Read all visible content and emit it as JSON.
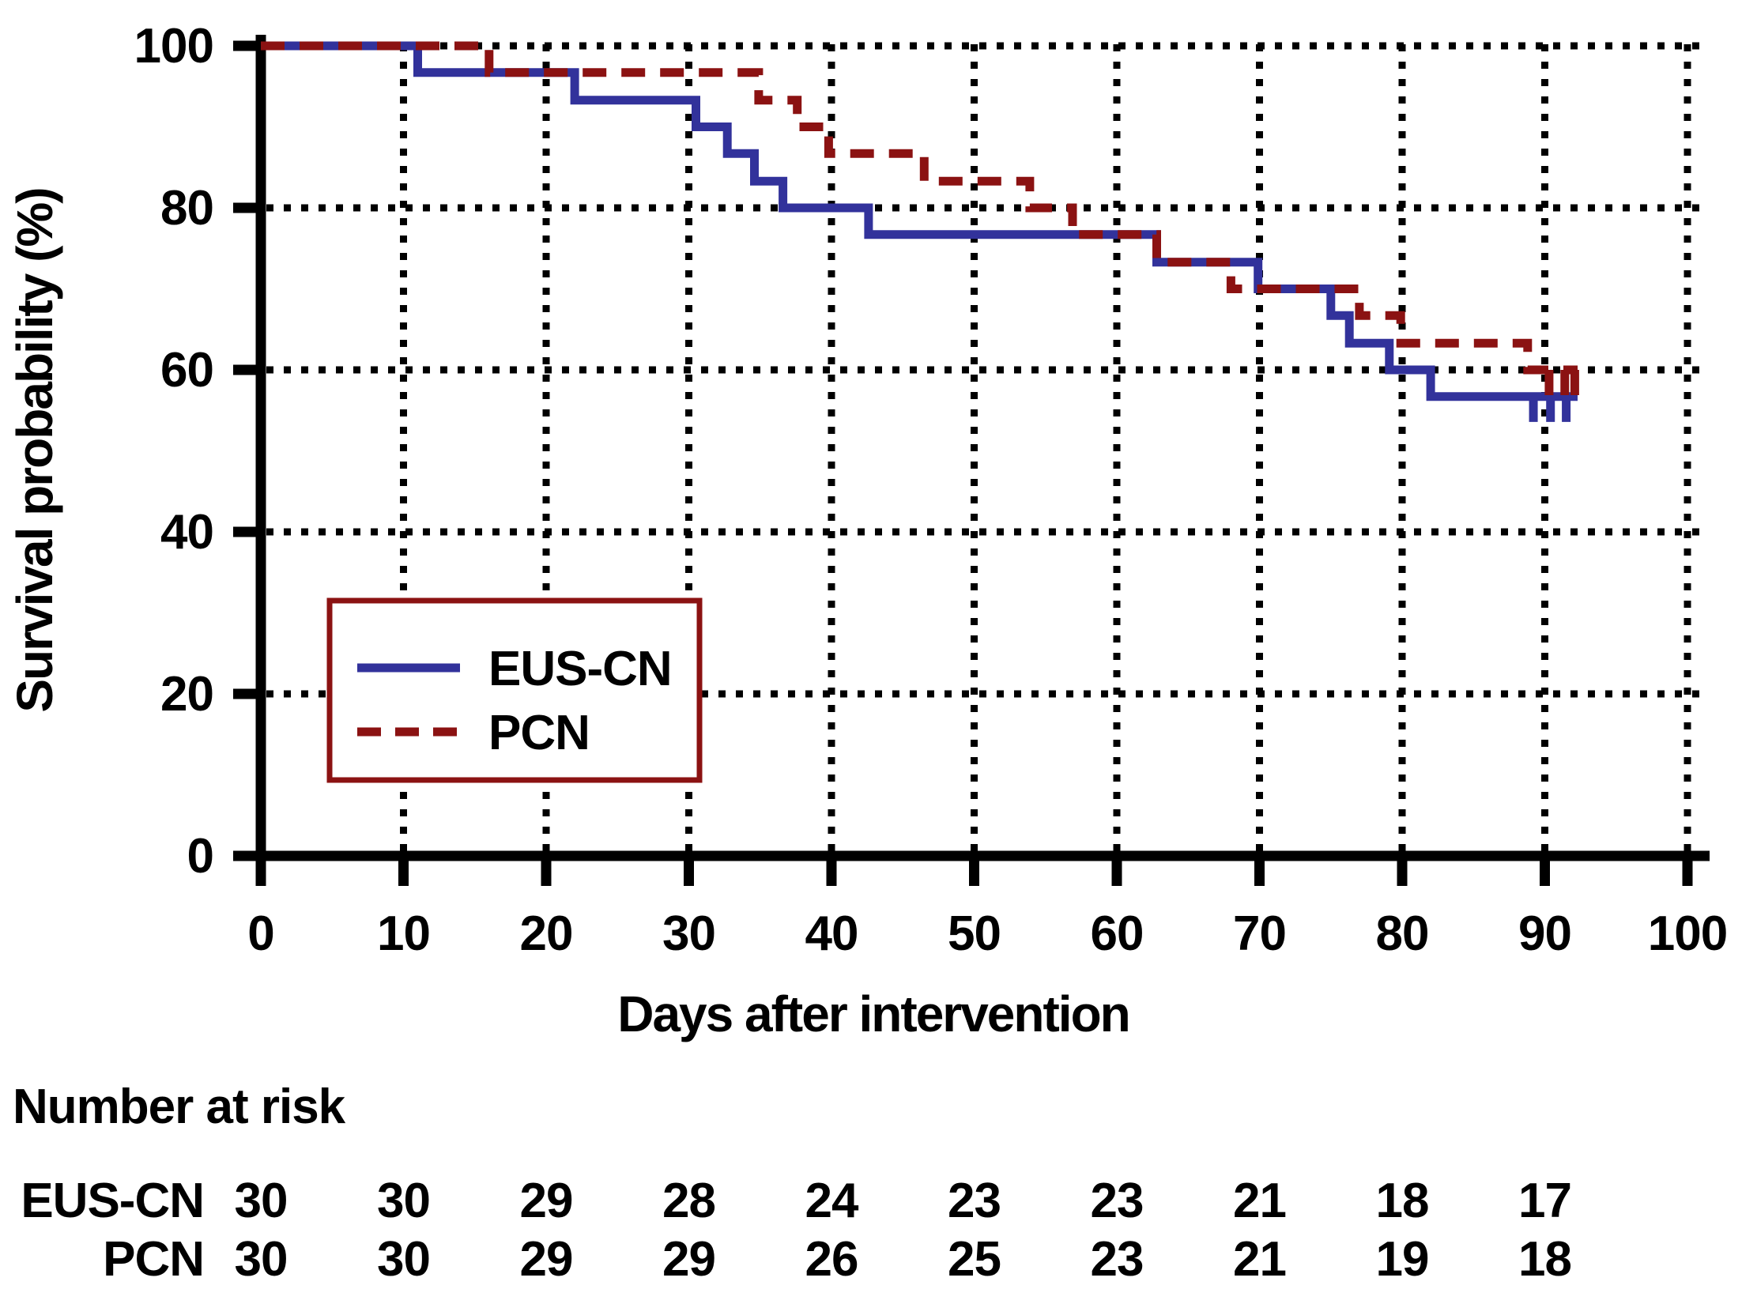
{
  "figure": {
    "background": "#ffffff",
    "text_color": "#000000",
    "axis_color": "#000000",
    "grid_color": "#000000"
  },
  "chart_data": {
    "type": "line",
    "subtype": "kaplan-meier-step",
    "title": "",
    "xlabel": "Days after intervention",
    "ylabel": "Survival probability (%)",
    "xlim": [
      0,
      100
    ],
    "ylim": [
      0,
      100
    ],
    "xticks": [
      0,
      10,
      20,
      30,
      40,
      50,
      60,
      70,
      80,
      90,
      100
    ],
    "yticks": [
      0,
      20,
      40,
      60,
      80,
      100
    ],
    "grid": {
      "style": "dotted",
      "vertical_at_days": [
        10,
        20,
        30,
        40,
        50,
        60,
        70,
        80,
        90,
        100
      ],
      "horizontal_at_pct": [
        20,
        40,
        60,
        80,
        100
      ]
    },
    "legend": {
      "position": "inside-lower-left",
      "border_color": "#8B1212",
      "fill": "#ffffff",
      "entries": [
        {
          "label": "EUS-CN",
          "color": "#32329B",
          "line_style": "solid"
        },
        {
          "label": "PCN",
          "color": "#8B1212",
          "line_style": "dashed"
        }
      ]
    },
    "series": [
      {
        "name": "EUS-CN",
        "color": "#32329B",
        "line_style": "solid",
        "points": [
          [
            0,
            100
          ],
          [
            11,
            100
          ],
          [
            11,
            96.7
          ],
          [
            22,
            96.7
          ],
          [
            22,
            93.3
          ],
          [
            30.5,
            93.3
          ],
          [
            30.5,
            90
          ],
          [
            32.7,
            90
          ],
          [
            32.7,
            86.7
          ],
          [
            34.6,
            86.7
          ],
          [
            34.6,
            83.3
          ],
          [
            36.6,
            83.3
          ],
          [
            36.6,
            80
          ],
          [
            42.6,
            80
          ],
          [
            42.6,
            76.7
          ],
          [
            62.8,
            76.7
          ],
          [
            62.8,
            73.3
          ],
          [
            69.9,
            73.3
          ],
          [
            69.9,
            70
          ],
          [
            75,
            70
          ],
          [
            75,
            66.7
          ],
          [
            76.3,
            66.7
          ],
          [
            76.3,
            63.3
          ],
          [
            79.1,
            63.3
          ],
          [
            79.1,
            60
          ],
          [
            82,
            60
          ],
          [
            82,
            56.7
          ],
          [
            92.3,
            56.7
          ]
        ],
        "censor_times": [
          89.2,
          90.4,
          91.5
        ],
        "censor_level": 56.7
      },
      {
        "name": "PCN",
        "color": "#8B1212",
        "line_style": "dashed",
        "points": [
          [
            0,
            100
          ],
          [
            16,
            100
          ],
          [
            16,
            96.7
          ],
          [
            34.9,
            96.7
          ],
          [
            34.9,
            93.3
          ],
          [
            37.6,
            93.3
          ],
          [
            37.6,
            90
          ],
          [
            39.8,
            90
          ],
          [
            39.8,
            86.7
          ],
          [
            46.5,
            86.7
          ],
          [
            46.5,
            83.3
          ],
          [
            53.9,
            83.3
          ],
          [
            53.9,
            80
          ],
          [
            56.9,
            80
          ],
          [
            56.9,
            76.7
          ],
          [
            62.8,
            76.7
          ],
          [
            62.8,
            73.3
          ],
          [
            68,
            73.3
          ],
          [
            68,
            70
          ],
          [
            77,
            70
          ],
          [
            77,
            66.7
          ],
          [
            79.9,
            66.7
          ],
          [
            79.9,
            63.3
          ],
          [
            88.8,
            63.3
          ],
          [
            88.8,
            60
          ],
          [
            92.3,
            60
          ]
        ],
        "censor_times": [
          90.3,
          91.4,
          92.1
        ],
        "censor_level": 60
      }
    ],
    "risk_table": {
      "title": "Number at risk",
      "times": [
        0,
        10,
        20,
        30,
        40,
        50,
        60,
        70,
        80,
        90
      ],
      "rows": [
        {
          "label": "EUS-CN",
          "values": [
            30,
            30,
            29,
            28,
            24,
            23,
            23,
            21,
            18,
            17
          ]
        },
        {
          "label": "PCN",
          "values": [
            30,
            30,
            29,
            29,
            26,
            25,
            23,
            21,
            19,
            18
          ]
        }
      ]
    }
  }
}
